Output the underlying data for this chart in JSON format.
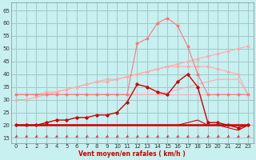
{
  "x": [
    0,
    1,
    2,
    3,
    4,
    5,
    6,
    7,
    8,
    9,
    10,
    11,
    12,
    13,
    14,
    15,
    16,
    17,
    18,
    19,
    20,
    21,
    22,
    23
  ],
  "line_rising_slow": [
    32,
    32,
    32,
    33,
    33,
    34,
    35,
    36,
    37,
    37,
    38,
    39,
    40,
    41,
    42,
    43,
    44,
    45,
    46,
    47,
    48,
    49,
    50,
    51
  ],
  "line_hump_pink": [
    30,
    30,
    31,
    32,
    33,
    34,
    35,
    36,
    37,
    38,
    38,
    39,
    40,
    41,
    42,
    43,
    43,
    43,
    43,
    43,
    42,
    41,
    40,
    32
  ],
  "line_flat_pink": [
    32,
    32,
    32,
    32,
    32,
    32,
    32,
    32,
    32,
    32,
    32,
    32,
    32,
    32,
    32,
    33,
    34,
    35,
    36,
    37,
    38,
    38,
    38,
    32
  ],
  "line_bump_pink": [
    32,
    32,
    32,
    32,
    32,
    32,
    32,
    32,
    32,
    32,
    32,
    32,
    32,
    32,
    32,
    32,
    32,
    32,
    32,
    32,
    32,
    32,
    32,
    32
  ],
  "line_peak_salmon": [
    32,
    32,
    32,
    32,
    32,
    32,
    32,
    32,
    32,
    32,
    32,
    32,
    52,
    54,
    60,
    62,
    59,
    51,
    40,
    32,
    32,
    32,
    32,
    32
  ],
  "line_dark_zigzag": [
    20,
    20,
    20,
    21,
    22,
    22,
    23,
    23,
    24,
    24,
    25,
    29,
    36,
    35,
    33,
    32,
    37,
    40,
    35,
    21,
    21,
    20,
    19,
    20
  ],
  "line_dark_flat": [
    20,
    20,
    20,
    20,
    20,
    20,
    20,
    20,
    20,
    20,
    20,
    20,
    20,
    20,
    20,
    20,
    20,
    20,
    20,
    20,
    20,
    20,
    20,
    20
  ],
  "line_dark_low": [
    20,
    20,
    20,
    20,
    20,
    20,
    20,
    20,
    20,
    20,
    20,
    20,
    20,
    20,
    20,
    20,
    20,
    21,
    22,
    20,
    20,
    19,
    18,
    20
  ],
  "bg_color": "#c8f0f0",
  "grid_color": "#a0c8c8",
  "light_pink": "#ffaaaa",
  "salmon": "#ff7777",
  "dark_red": "#cc0000",
  "xlabel": "Vent moyen/en rafales ( km/h )",
  "ylim": [
    13,
    68
  ],
  "xlim": [
    -0.5,
    23.5
  ],
  "yticks": [
    15,
    20,
    25,
    30,
    35,
    40,
    45,
    50,
    55,
    60,
    65
  ],
  "xticks": [
    0,
    1,
    2,
    3,
    4,
    5,
    6,
    7,
    8,
    9,
    10,
    11,
    12,
    13,
    14,
    15,
    16,
    17,
    18,
    19,
    20,
    21,
    22,
    23
  ]
}
